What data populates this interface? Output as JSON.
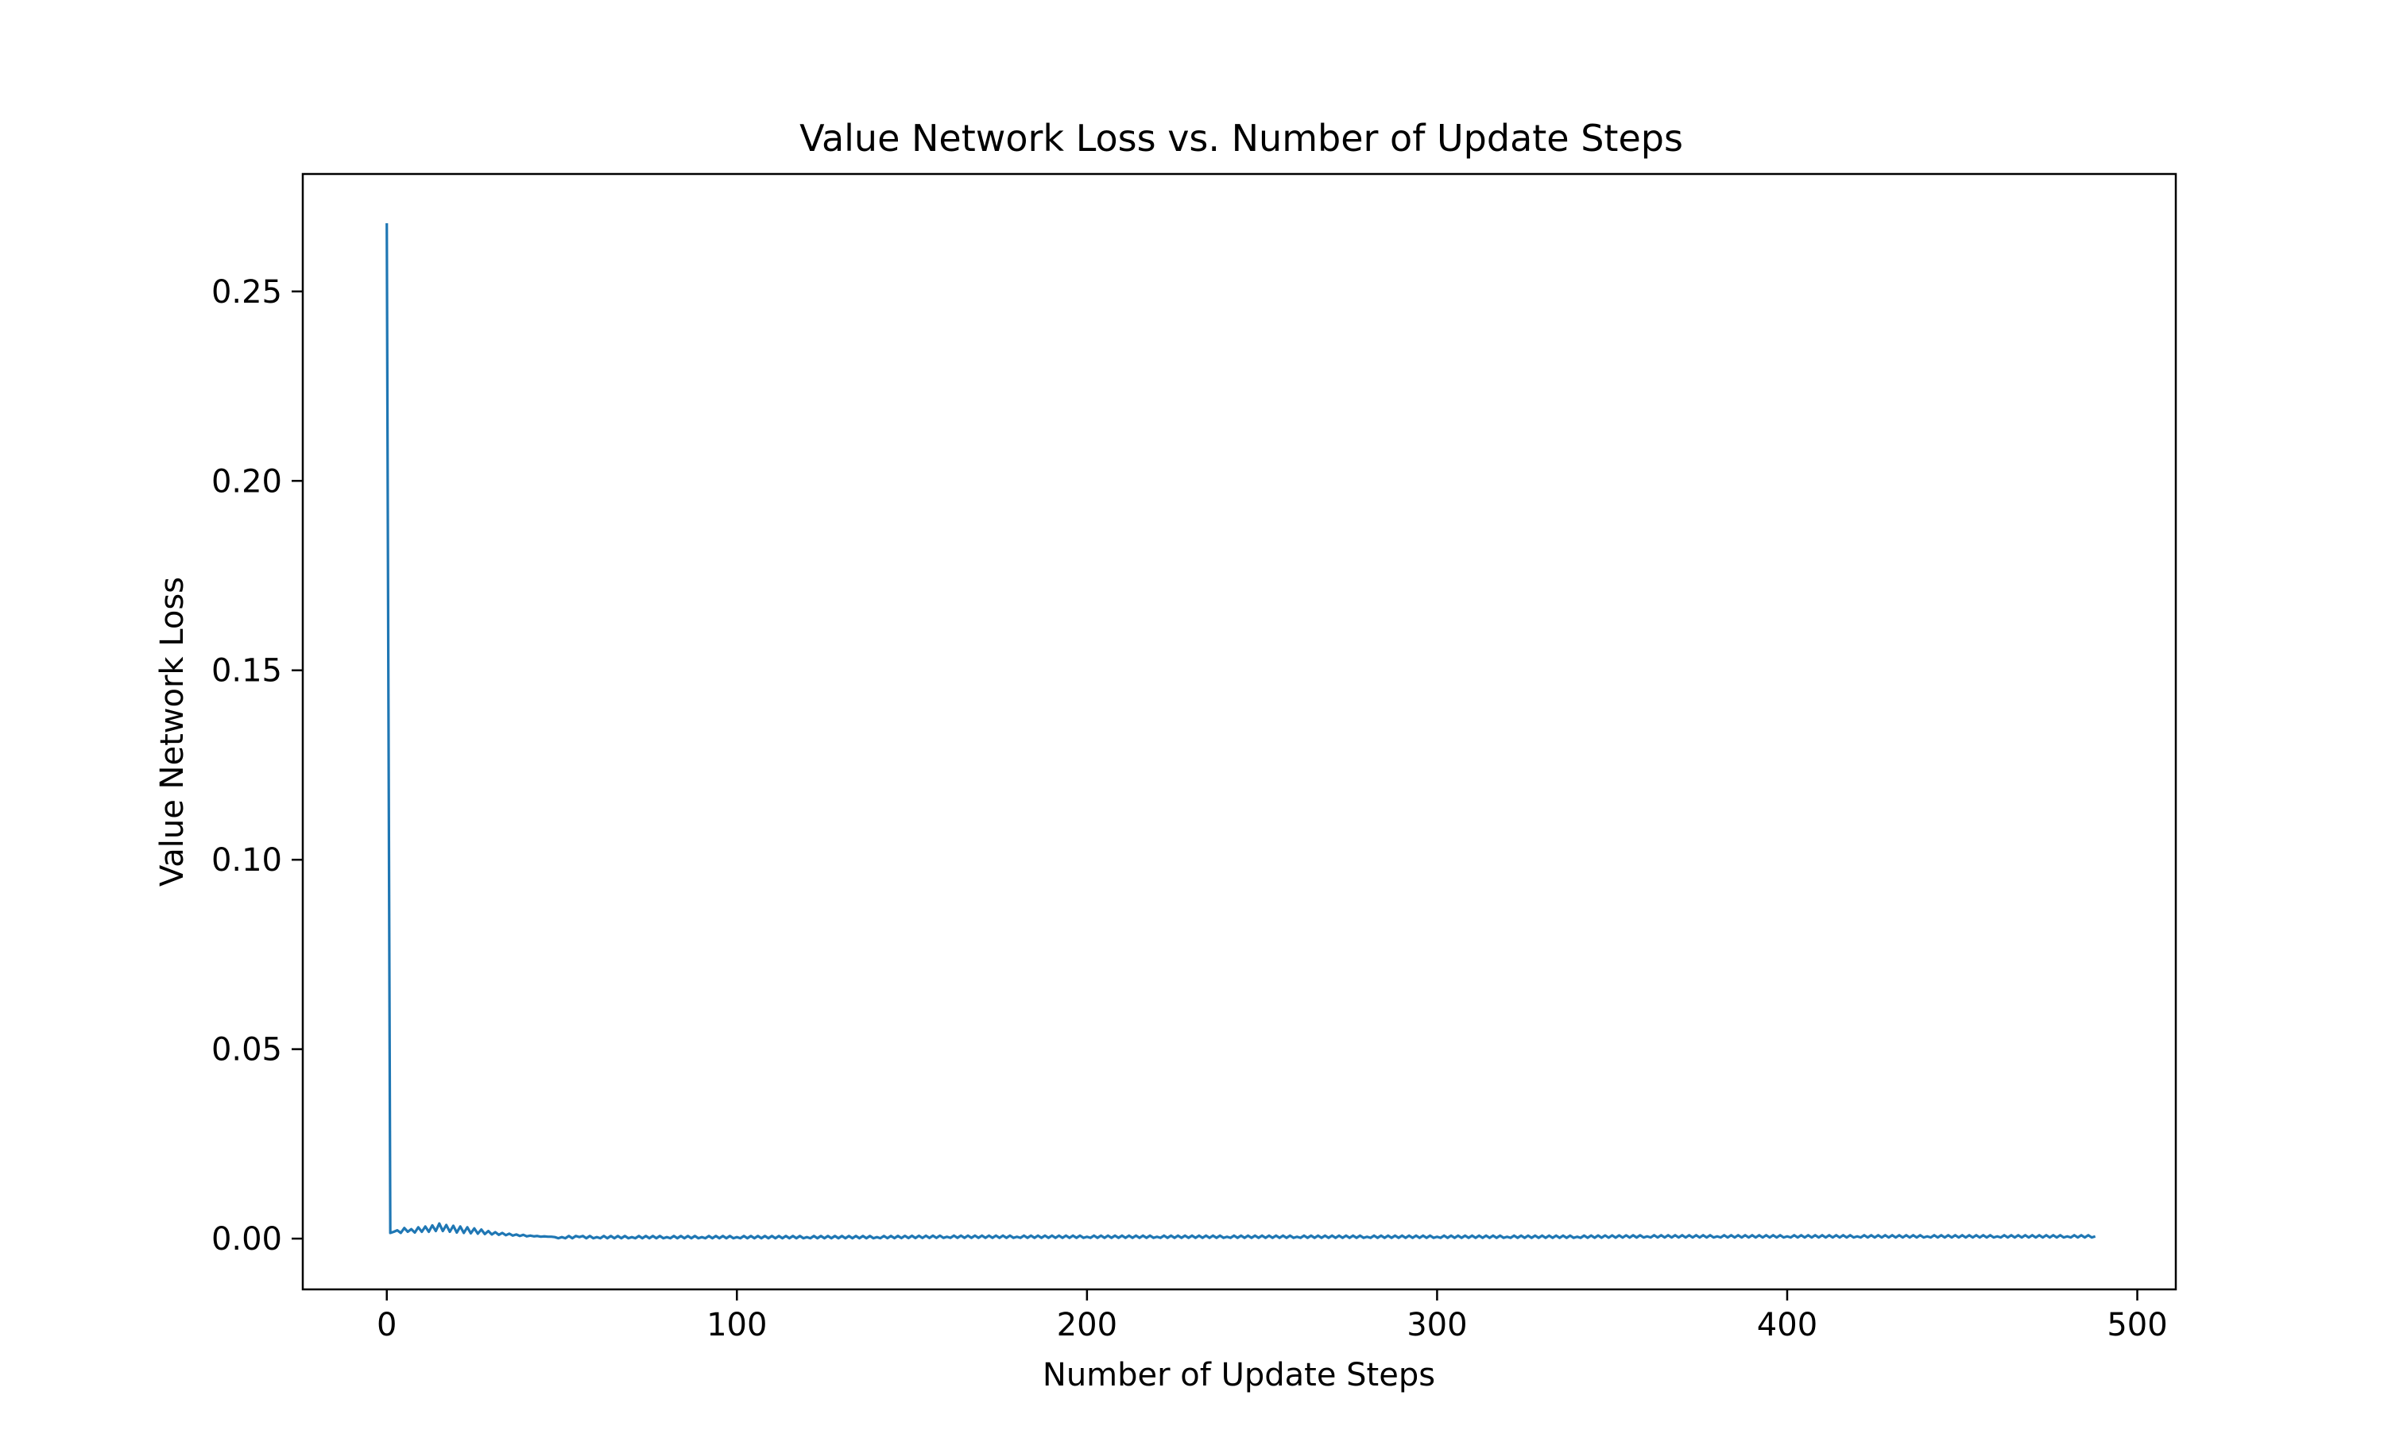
{
  "chart_data": {
    "type": "line",
    "title": "Value Network Loss vs. Number of Update Steps",
    "xlabel": "Number of Update Steps",
    "ylabel": "Value Network Loss",
    "xlim": [
      -24,
      511
    ],
    "ylim": [
      -0.0134,
      0.281
    ],
    "xticks": [
      0,
      100,
      200,
      300,
      400,
      500
    ],
    "xtick_labels": [
      "0",
      "100",
      "200",
      "300",
      "400",
      "500"
    ],
    "yticks": [
      0.0,
      0.05,
      0.1,
      0.15,
      0.2,
      0.25
    ],
    "ytick_labels": [
      "0.00",
      "0.05",
      "0.10",
      "0.15",
      "0.20",
      "0.25"
    ],
    "grid": false,
    "legend": "none",
    "line_color": "#1f77b4",
    "series": [
      {
        "x": [
          0,
          1,
          2,
          3,
          4,
          5,
          6,
          7,
          8,
          9,
          10,
          11,
          12,
          13,
          14,
          15,
          16,
          17,
          18,
          19,
          20,
          21,
          22,
          23,
          24,
          25,
          26,
          27,
          28,
          29,
          30,
          31,
          32,
          33,
          34,
          35,
          36,
          37,
          38,
          39,
          40,
          41,
          42,
          43,
          44,
          45,
          46,
          47,
          48,
          50,
          55,
          60,
          70,
          80,
          90,
          100,
          120,
          140,
          160,
          180,
          200,
          220,
          240,
          260,
          280,
          300,
          320,
          340,
          360,
          380,
          400,
          420,
          440,
          460,
          480,
          488
        ],
        "values": [
          0.268,
          0.0015,
          0.0018,
          0.0022,
          0.0015,
          0.0028,
          0.0018,
          0.0025,
          0.0016,
          0.003,
          0.0018,
          0.0032,
          0.0018,
          0.0035,
          0.002,
          0.004,
          0.002,
          0.0036,
          0.0018,
          0.0034,
          0.0016,
          0.0032,
          0.0015,
          0.003,
          0.0014,
          0.0027,
          0.0013,
          0.0024,
          0.0012,
          0.002,
          0.0011,
          0.0017,
          0.001,
          0.0015,
          0.0009,
          0.0013,
          0.0008,
          0.0011,
          0.0007,
          0.001,
          0.0006,
          0.0008,
          0.0006,
          0.0007,
          0.0005,
          0.0006,
          0.0005,
          0.0005,
          0.0004,
          0.0004,
          0.0004,
          0.0004,
          0.0004,
          0.0004,
          0.0004,
          0.0004,
          0.0004,
          0.0004,
          0.0005,
          0.0005,
          0.0005,
          0.0005,
          0.0005,
          0.0005,
          0.0005,
          0.0005,
          0.0005,
          0.0005,
          0.0006,
          0.0006,
          0.0006,
          0.0006,
          0.0006,
          0.0006,
          0.0006,
          0.0006
        ]
      }
    ]
  }
}
